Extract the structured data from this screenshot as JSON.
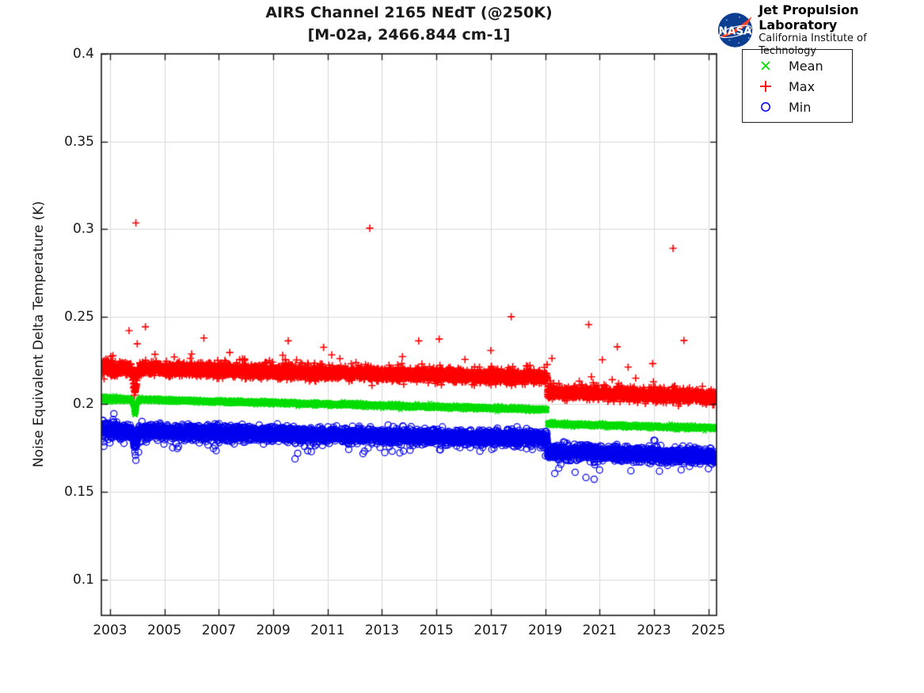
{
  "header": {
    "title_line1": "AIRS Channel 2165 NEdT (@250K)",
    "title_line2": "[M-02a, 2466.844 cm-1]"
  },
  "logo": {
    "nasa_text": "NASA",
    "org_line1": "Jet Propulsion Laboratory",
    "org_line2": "California Institute of Technology",
    "colors": {
      "nasa_blue": "#0b3d91",
      "nasa_red": "#fc3d21"
    }
  },
  "legend": {
    "items": [
      {
        "label": "Mean",
        "marker": "x-marker",
        "color": "#00dd00"
      },
      {
        "label": "Max",
        "marker": "plus-marker",
        "color": "#ff0000"
      },
      {
        "label": "Min",
        "marker": "circle-marker",
        "color": "#0000ee"
      }
    ]
  },
  "chart_data": {
    "type": "scatter",
    "title": "AIRS Channel 2165 NEdT (@250K) [M-02a, 2466.844 cm-1]",
    "xlabel": "",
    "ylabel": "Noise Equivalent Delta Temperature (K)",
    "xlim": [
      2002.68,
      2025.3
    ],
    "ylim": [
      0.0795,
      0.4
    ],
    "xticks": {
      "values": [
        2003,
        2005,
        2007,
        2009,
        2011,
        2013,
        2015,
        2017,
        2019,
        2021,
        2023,
        2025
      ],
      "labels": [
        "2003",
        "2005",
        "2007",
        "2009",
        "2011",
        "2013",
        "2015",
        "2017",
        "2019",
        "2021",
        "2023",
        "2025"
      ]
    },
    "yticks": {
      "values": [
        0.1,
        0.15,
        0.2,
        0.25,
        0.3,
        0.35,
        0.4
      ],
      "labels": [
        "0.1",
        "0.15",
        "0.2",
        "0.25",
        "0.3",
        "0.35",
        "0.4"
      ]
    },
    "grid": true,
    "grid_color": "#d9d9d9",
    "axis_color": "#1a1a1a",
    "legend_position": "outside-top-right",
    "points_per_series": 5200,
    "series": [
      {
        "name": "Mean",
        "marker": "x",
        "color": "#00dd00",
        "trend": {
          "start_year": 2002.72,
          "end_year": 2025.28,
          "start_value": 0.2032,
          "pre_step_value": 0.197,
          "step_year": 2019.08,
          "post_step_value": 0.1888,
          "end_value": 0.1864,
          "dip_year": 2003.92,
          "dip_depth": 0.008,
          "dip_width": 0.055
        },
        "noise_sigma": 0.0006,
        "early_sigma_mult": 1.6,
        "tail": {
          "direction": 0,
          "mean": 0,
          "prob": 0
        },
        "outliers": [
          [
            2003.87,
            0.1952
          ],
          [
            2003.93,
            0.1941
          ],
          [
            2003.97,
            0.1957
          ]
        ]
      },
      {
        "name": "Max",
        "marker": "+",
        "color": "#ff0000",
        "trend": {
          "start_year": 2002.72,
          "end_year": 2025.28,
          "start_value": 0.2205,
          "pre_step_value": 0.2148,
          "step_year": 2019.08,
          "post_step_value": 0.2068,
          "end_value": 0.2038,
          "dip_year": 2003.92,
          "dip_depth": 0.0115,
          "dip_width": 0.055
        },
        "noise_sigma": 0.0016,
        "early_sigma_mult": 1.3,
        "tail": {
          "direction": 1,
          "mean": 0.0012,
          "prob": 0.32
        },
        "outliers": [
          [
            2003.7,
            0.242
          ],
          [
            2003.95,
            0.3035
          ],
          [
            2004.0,
            0.2345
          ],
          [
            2004.3,
            0.2442
          ],
          [
            2004.65,
            0.2285
          ],
          [
            2006.0,
            0.2287
          ],
          [
            2006.45,
            0.2378
          ],
          [
            2007.4,
            0.2295
          ],
          [
            2009.35,
            0.228
          ],
          [
            2009.55,
            0.2362
          ],
          [
            2010.85,
            0.2325
          ],
          [
            2011.15,
            0.2282
          ],
          [
            2012.55,
            0.3005
          ],
          [
            2013.75,
            0.2272
          ],
          [
            2014.35,
            0.2362
          ],
          [
            2015.1,
            0.2372
          ],
          [
            2016.05,
            0.2256
          ],
          [
            2017.0,
            0.2307
          ],
          [
            2017.75,
            0.25
          ],
          [
            2019.25,
            0.2262
          ],
          [
            2020.6,
            0.2455
          ],
          [
            2020.7,
            0.2157
          ],
          [
            2021.1,
            0.2254
          ],
          [
            2021.65,
            0.2328
          ],
          [
            2022.05,
            0.2212
          ],
          [
            2022.95,
            0.2232
          ],
          [
            2023.7,
            0.289
          ],
          [
            2024.1,
            0.2364
          ]
        ]
      },
      {
        "name": "Min",
        "marker": "o",
        "color": "#0000ee",
        "trend": {
          "start_year": 2002.72,
          "end_year": 2025.28,
          "start_value": 0.1852,
          "pre_step_value": 0.1806,
          "step_year": 2019.08,
          "post_step_value": 0.1736,
          "end_value": 0.1706,
          "dip_year": 2003.92,
          "dip_depth": 0.008,
          "dip_width": 0.055
        },
        "noise_sigma": 0.0018,
        "early_sigma_mult": 1.5,
        "tail": {
          "direction": -1,
          "mean": 0.0014,
          "prob": 0.28
        },
        "outliers": [
          [
            2003.95,
            0.168
          ],
          [
            2004.05,
            0.1726
          ],
          [
            2005.3,
            0.1752
          ],
          [
            2006.8,
            0.1748
          ],
          [
            2009.8,
            0.1688
          ],
          [
            2009.9,
            0.172
          ],
          [
            2010.4,
            0.173
          ],
          [
            2012.3,
            0.1718
          ],
          [
            2013.1,
            0.1724
          ],
          [
            2016.6,
            0.1732
          ],
          [
            2019.35,
            0.1605
          ],
          [
            2019.5,
            0.1635
          ],
          [
            2020.1,
            0.1612
          ],
          [
            2020.5,
            0.1582
          ],
          [
            2020.8,
            0.1572
          ],
          [
            2021.0,
            0.1625
          ],
          [
            2022.15,
            0.162
          ],
          [
            2023.2,
            0.1618
          ],
          [
            2024.0,
            0.1626
          ],
          [
            2025.0,
            0.1632
          ]
        ]
      }
    ]
  }
}
